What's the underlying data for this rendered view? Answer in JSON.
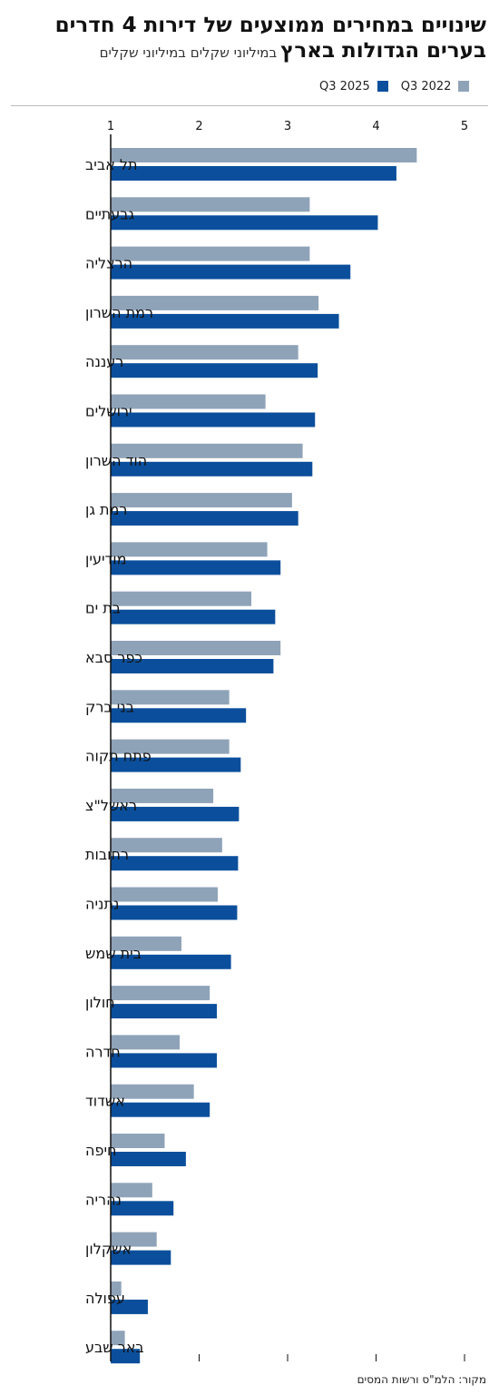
{
  "header": {
    "title": "שינויים במחירים ממוצעים של דירות 4 חדרים",
    "subtitle_bold": "בערים הגדולות בארץ",
    "subtitle_regular": "במיליוני שקלים במיליוני שקלים"
  },
  "source": "מקור: הלמ\"ס ורשות המסים",
  "colors": {
    "q3_2022": "#8fa3b8",
    "q3_2025": "#0b4f9c",
    "axis": "#111111"
  },
  "chart_data": {
    "type": "bar",
    "orientation": "horizontal",
    "xlim": [
      1,
      5
    ],
    "x_ticks": [
      "1",
      "2",
      "3",
      "4",
      "5"
    ],
    "grid": false,
    "legend_position": "top-right",
    "legend": [
      "Q3 2025",
      "Q3 2022"
    ],
    "categories": [
      "תל אביב",
      "גבעתיים",
      "הרצליה",
      "רמת השרון",
      "רעננה",
      "ירושלים",
      "הוד השרון",
      "רמת גן",
      "מודיעין",
      "בת ים",
      "כפר סבא",
      "בני ברק",
      "פתח תקוה",
      "ראשל\"צ",
      "רחובות",
      "נתניה",
      "בית שמש",
      "חולון",
      "חדרה",
      "אשדוד",
      "חיפה",
      "נהריה",
      "אשקלון",
      "עפולה",
      "באר שבע"
    ],
    "series": [
      {
        "name": "Q3 2022",
        "values": [
          4.46,
          3.25,
          3.25,
          3.35,
          3.12,
          2.75,
          3.17,
          3.05,
          2.77,
          2.59,
          2.92,
          2.34,
          2.34,
          2.16,
          2.26,
          2.21,
          1.8,
          2.12,
          1.78,
          1.94,
          1.61,
          1.47,
          1.52,
          1.12,
          1.16
        ]
      },
      {
        "name": "Q3 2025",
        "values": [
          4.23,
          4.02,
          3.71,
          3.58,
          3.34,
          3.31,
          3.28,
          3.12,
          2.92,
          2.86,
          2.84,
          2.53,
          2.47,
          2.45,
          2.44,
          2.43,
          2.36,
          2.2,
          2.2,
          2.12,
          1.85,
          1.71,
          1.68,
          1.42,
          1.33
        ]
      }
    ]
  }
}
